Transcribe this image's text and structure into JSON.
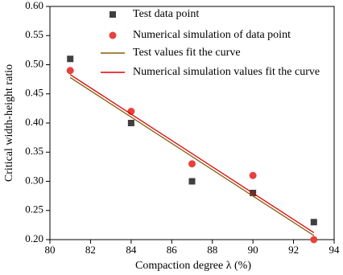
{
  "chart_data": {
    "type": "scatter",
    "xlabel": "Compaction degree λ  (%)",
    "ylabel": "Critical width-height ratio",
    "xlim": [
      80,
      94
    ],
    "xticks": [
      80,
      82,
      84,
      86,
      88,
      90,
      92,
      94
    ],
    "ylim": [
      0.2,
      0.6
    ],
    "yticks": [
      {
        "value": 0.2,
        "label": "0.20"
      },
      0.25,
      {
        "value": 0.3,
        "label": "0.30"
      },
      0.35,
      {
        "value": 0.4,
        "label": "0.40"
      },
      0.45,
      {
        "value": 0.5,
        "label": "0.50"
      },
      0.55,
      {
        "value": 0.6,
        "label": "0.60"
      }
    ],
    "legend": "upper center",
    "series": [
      {
        "name": "Test data point",
        "type": "scatter",
        "marker": "square",
        "color": "#3f3f3f",
        "x": [
          81,
          84,
          87,
          90,
          93
        ],
        "values": [
          0.51,
          0.4,
          0.3,
          0.28,
          0.23
        ]
      },
      {
        "name": "Numerical simulation of data point",
        "type": "scatter",
        "marker": "circle",
        "color": "#e8413c",
        "x": [
          81,
          84,
          87,
          90,
          93
        ],
        "values": [
          0.49,
          0.42,
          0.33,
          0.31,
          0.2
        ]
      },
      {
        "name": "Test values fit the curve",
        "type": "line",
        "color": "#8a5a0b",
        "x": [
          81,
          93
        ],
        "values": [
          0.478,
          0.207
        ]
      },
      {
        "name": "Numerical simulation values fit the curve",
        "type": "line",
        "color": "#e00000",
        "x": [
          81,
          93
        ],
        "values": [
          0.483,
          0.212
        ]
      }
    ]
  }
}
